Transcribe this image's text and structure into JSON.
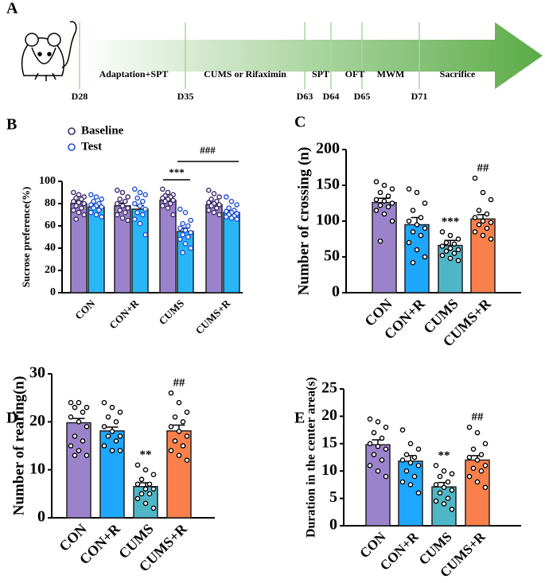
{
  "timeline": {
    "label": "A",
    "phases": [
      "Adaptation+SPT",
      "CUMS or Rifaximin",
      "SPT",
      "OFT",
      "MWM",
      "Sacrifice"
    ],
    "days": [
      "D28",
      "D35",
      "D63",
      "D64",
      "D65",
      "D71"
    ]
  },
  "chart_data": [
    {
      "type": "grouped_bar",
      "label": "B",
      "ylabel": "Sucrose preference(%)",
      "categories": [
        "CON",
        "CON+R",
        "CUMS",
        "CUMS+R"
      ],
      "ylim": [
        0,
        100
      ],
      "yticks": [
        0,
        20,
        40,
        60,
        80,
        100
      ],
      "annotations": [
        "***",
        "###"
      ],
      "series": [
        {
          "name": "Baseline",
          "color": "#9b83cc",
          "point_color": "#3b2a6b",
          "values": [
            80,
            78,
            83,
            79
          ],
          "errors": [
            2,
            2.5,
            2,
            1.8
          ],
          "points": [
            [
              90,
              88,
              86,
              85,
              84,
              82,
              81,
              80,
              78,
              76,
              74,
              72,
              70,
              66
            ],
            [
              92,
              90,
              86,
              84,
              82,
              80,
              78,
              76,
              74,
              72,
              70,
              67,
              65
            ],
            [
              93,
              90,
              88,
              87,
              86,
              85,
              84,
              83,
              82,
              80,
              78,
              76,
              70
            ],
            [
              92,
              89,
              86,
              84,
              82,
              81,
              80,
              79,
              78,
              76,
              74,
              72,
              70
            ]
          ]
        },
        {
          "name": "Test",
          "color": "#29b6f6",
          "point_color": "#1f4fd8",
          "values": [
            77,
            75,
            55,
            72
          ],
          "errors": [
            1.8,
            3,
            3,
            1.5
          ],
          "points": [
            [
              88,
              86,
              84,
              82,
              80,
              79,
              78,
              77,
              76,
              74,
              72,
              70,
              68
            ],
            [
              93,
              90,
              88,
              85,
              82,
              80,
              78,
              75,
              72,
              70,
              66,
              62,
              52
            ],
            [
              75,
              72,
              65,
              62,
              60,
              58,
              56,
              54,
              52,
              50,
              48,
              44,
              40,
              36
            ],
            [
              86,
              82,
              79,
              76,
              74,
              73,
              72,
              71,
              70,
              69,
              68,
              67,
              66
            ]
          ]
        }
      ]
    },
    {
      "type": "bar",
      "label": "C",
      "ylabel": "Number of crossing (n)",
      "categories": [
        "CON",
        "CON+R",
        "CUMS",
        "CUMS+R"
      ],
      "colors": [
        "#9b83cc",
        "#1ea7ff",
        "#4fb6c8",
        "#f9804a"
      ],
      "ylim": [
        0,
        200
      ],
      "yticks": [
        0,
        50,
        100,
        150,
        200
      ],
      "annotations": [
        "***",
        "##"
      ],
      "values": [
        126,
        95,
        66,
        103
      ],
      "errors": [
        6,
        10,
        7,
        6
      ],
      "points": [
        [
          155,
          150,
          145,
          140,
          135,
          130,
          128,
          125,
          122,
          120,
          115,
          110,
          100,
          72
        ],
        [
          145,
          140,
          125,
          115,
          105,
          100,
          95,
          90,
          85,
          80,
          70,
          60,
          50,
          42
        ],
        [
          85,
          80,
          75,
          70,
          68,
          65,
          62,
          60,
          58,
          55,
          52,
          48,
          45
        ],
        [
          160,
          140,
          130,
          115,
          110,
          105,
          100,
          98,
          95,
          90,
          85,
          80,
          75
        ]
      ]
    },
    {
      "type": "bar",
      "label": "D",
      "ylabel": "Number of rearing(n)",
      "categories": [
        "CON",
        "CON+R",
        "CUMS",
        "CUMS+R"
      ],
      "colors": [
        "#9b83cc",
        "#1ea7ff",
        "#4fb6c8",
        "#f9804a"
      ],
      "ylim": [
        0,
        30
      ],
      "yticks": [
        0,
        10,
        20,
        30
      ],
      "annotations": [
        "**",
        "##"
      ],
      "values": [
        19.8,
        18.1,
        6.5,
        18.1
      ],
      "errors": [
        0.9,
        0.8,
        0.8,
        1.2
      ],
      "points": [
        [
          24,
          24,
          23,
          23,
          22,
          21,
          20,
          19,
          17,
          16,
          15,
          14,
          13,
          13
        ],
        [
          24,
          23,
          22,
          21,
          20,
          19,
          18,
          17,
          17,
          16,
          15,
          14,
          14
        ],
        [
          11,
          10,
          9,
          8,
          7,
          7,
          6,
          6,
          5,
          5,
          4,
          3,
          2
        ],
        [
          26,
          24,
          22,
          21,
          20,
          19,
          18,
          17,
          16,
          15,
          14,
          13,
          12
        ]
      ]
    },
    {
      "type": "bar",
      "label": "E",
      "ylabel": "Duration in the center area(s)",
      "categories": [
        "CON",
        "CON+R",
        "CUMS",
        "CUMS+R"
      ],
      "colors": [
        "#9b83cc",
        "#1ea7ff",
        "#4fb6c8",
        "#f9804a"
      ],
      "ylim": [
        0,
        25
      ],
      "yticks": [
        0,
        5,
        10,
        15,
        20,
        25
      ],
      "annotations": [
        "**",
        "##"
      ],
      "values": [
        14.8,
        11.8,
        7.1,
        12.0
      ],
      "errors": [
        0.9,
        1.0,
        0.8,
        0.8
      ],
      "points": [
        [
          19.5,
          19,
          18,
          17,
          16,
          15,
          14.5,
          14,
          13,
          12,
          11,
          10,
          9
        ],
        [
          17.5,
          15,
          14,
          13,
          12.5,
          12,
          11.5,
          11,
          10,
          9,
          8,
          7.5,
          6
        ],
        [
          11,
          10,
          9.5,
          9,
          8,
          7.5,
          7,
          6.5,
          6,
          5,
          4.5,
          4,
          3
        ],
        [
          18,
          17,
          15,
          14,
          13,
          12.5,
          12,
          11,
          10.5,
          10,
          9,
          8,
          7
        ]
      ]
    }
  ]
}
